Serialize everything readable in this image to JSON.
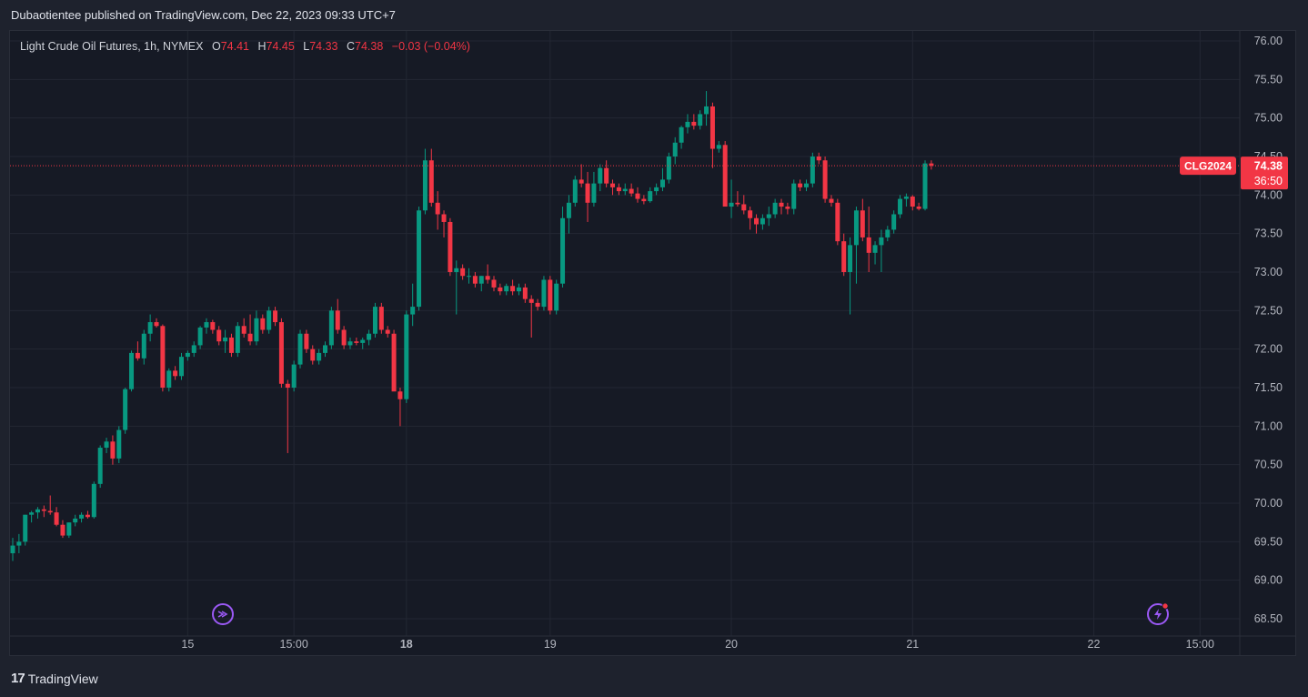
{
  "header": {
    "published_line": "Dubaotientee published on TradingView.com, Dec 22, 2023 09:33 UTC+7"
  },
  "legend": {
    "instrument": "Light Crude Oil Futures, 1h, NYMEX",
    "open_label": "O",
    "open": "74.41",
    "high_label": "H",
    "high": "74.45",
    "low_label": "L",
    "low": "74.33",
    "close_label": "C",
    "close": "74.38",
    "change": "−0.03 (−0.04%)"
  },
  "footer": {
    "brand": "TradingView",
    "brand_logo": "17"
  },
  "colors": {
    "up": "#089981",
    "down": "#f23645",
    "background": "#161a25",
    "grid": "#232733"
  },
  "icons": [
    "replay-arrow-icon",
    "flash-alert-icon"
  ],
  "chart_data": {
    "type": "candlestick",
    "interval": "1h",
    "symbol": "CLG2024",
    "last_price": "74.38",
    "countdown": "36:50",
    "ylim": [
      68.5,
      76.0
    ],
    "y_ticks": [
      "76.00",
      "75.50",
      "75.00",
      "74.50",
      "74.00",
      "73.50",
      "73.00",
      "72.50",
      "72.00",
      "71.50",
      "71.00",
      "70.50",
      "70.00",
      "69.50",
      "69.00",
      "68.50"
    ],
    "x_ticks": [
      {
        "label": "15",
        "index": 28,
        "bold": false
      },
      {
        "label": "15:00",
        "index": 45,
        "bold": false
      },
      {
        "label": "18",
        "index": 63,
        "bold": true
      },
      {
        "label": "19",
        "index": 86,
        "bold": false
      },
      {
        "label": "20",
        "index": 115,
        "bold": false
      },
      {
        "label": "21",
        "index": 144,
        "bold": false
      },
      {
        "label": "22",
        "index": 173,
        "bold": false
      },
      {
        "label": "15:00",
        "index": 190,
        "bold": false
      }
    ],
    "ohlc": [
      [
        69.35,
        69.55,
        69.25,
        69.45
      ],
      [
        69.45,
        69.6,
        69.35,
        69.5
      ],
      [
        69.5,
        69.85,
        69.45,
        69.85
      ],
      [
        69.85,
        69.9,
        69.75,
        69.88
      ],
      [
        69.88,
        69.95,
        69.8,
        69.92
      ],
      [
        69.92,
        69.97,
        69.82,
        69.9
      ],
      [
        69.9,
        70.1,
        69.85,
        69.88
      ],
      [
        69.88,
        69.95,
        69.7,
        69.72
      ],
      [
        69.72,
        69.78,
        69.55,
        69.58
      ],
      [
        69.58,
        69.75,
        69.55,
        69.75
      ],
      [
        69.75,
        69.85,
        69.7,
        69.8
      ],
      [
        69.8,
        69.88,
        69.75,
        69.85
      ],
      [
        69.85,
        69.9,
        69.8,
        69.82
      ],
      [
        69.82,
        70.28,
        69.8,
        70.25
      ],
      [
        70.25,
        70.75,
        70.2,
        70.72
      ],
      [
        70.72,
        70.85,
        70.65,
        70.8
      ],
      [
        70.8,
        70.88,
        70.5,
        70.58
      ],
      [
        70.58,
        71.0,
        70.52,
        70.95
      ],
      [
        70.95,
        71.5,
        70.9,
        71.48
      ],
      [
        71.48,
        71.98,
        71.45,
        71.95
      ],
      [
        71.95,
        72.1,
        71.85,
        71.88
      ],
      [
        71.88,
        72.25,
        71.8,
        72.2
      ],
      [
        72.2,
        72.45,
        72.1,
        72.35
      ],
      [
        72.35,
        72.4,
        72.28,
        72.3
      ],
      [
        72.3,
        72.32,
        71.45,
        71.5
      ],
      [
        71.5,
        71.75,
        71.45,
        71.72
      ],
      [
        71.72,
        71.78,
        71.6,
        71.65
      ],
      [
        71.65,
        71.95,
        71.6,
        71.9
      ],
      [
        71.9,
        71.98,
        71.85,
        71.95
      ],
      [
        71.95,
        72.1,
        71.9,
        72.05
      ],
      [
        72.05,
        72.3,
        72.0,
        72.28
      ],
      [
        72.28,
        72.4,
        72.2,
        72.35
      ],
      [
        72.35,
        72.38,
        72.2,
        72.25
      ],
      [
        72.25,
        72.3,
        72.05,
        72.1
      ],
      [
        72.1,
        72.25,
        71.95,
        72.15
      ],
      [
        72.15,
        72.2,
        71.9,
        71.95
      ],
      [
        71.95,
        72.35,
        71.9,
        72.3
      ],
      [
        72.3,
        72.4,
        72.15,
        72.2
      ],
      [
        72.2,
        72.45,
        72.05,
        72.1
      ],
      [
        72.1,
        72.5,
        72.05,
        72.4
      ],
      [
        72.4,
        72.45,
        72.2,
        72.25
      ],
      [
        72.25,
        72.55,
        72.2,
        72.5
      ],
      [
        72.5,
        72.55,
        72.3,
        72.35
      ],
      [
        72.35,
        72.4,
        71.5,
        71.55
      ],
      [
        71.55,
        71.6,
        70.65,
        71.5
      ],
      [
        71.5,
        71.85,
        71.45,
        71.8
      ],
      [
        71.8,
        72.25,
        71.75,
        72.2
      ],
      [
        72.2,
        72.25,
        71.95,
        72.0
      ],
      [
        72.0,
        72.05,
        71.8,
        71.85
      ],
      [
        71.85,
        72.0,
        71.8,
        71.95
      ],
      [
        71.95,
        72.1,
        71.9,
        72.05
      ],
      [
        72.05,
        72.55,
        72.0,
        72.5
      ],
      [
        72.5,
        72.65,
        72.2,
        72.25
      ],
      [
        72.25,
        72.3,
        72.0,
        72.05
      ],
      [
        72.05,
        72.15,
        72.0,
        72.1
      ],
      [
        72.1,
        72.15,
        72.05,
        72.08
      ],
      [
        72.08,
        72.15,
        72.0,
        72.12
      ],
      [
        72.12,
        72.25,
        72.05,
        72.2
      ],
      [
        72.2,
        72.6,
        72.15,
        72.55
      ],
      [
        72.55,
        72.6,
        72.2,
        72.25
      ],
      [
        72.25,
        72.3,
        72.15,
        72.2
      ],
      [
        72.2,
        72.25,
        71.5,
        71.45
      ],
      [
        71.45,
        71.5,
        71.0,
        71.35
      ],
      [
        71.35,
        72.5,
        71.3,
        72.45
      ],
      [
        72.45,
        72.85,
        72.3,
        72.55
      ],
      [
        72.55,
        73.85,
        72.5,
        73.8
      ],
      [
        73.8,
        74.6,
        73.75,
        74.45
      ],
      [
        74.45,
        74.6,
        73.85,
        73.9
      ],
      [
        73.9,
        74.05,
        73.55,
        73.75
      ],
      [
        73.75,
        73.8,
        73.45,
        73.65
      ],
      [
        73.65,
        73.7,
        72.95,
        73.0
      ],
      [
        73.0,
        73.15,
        72.45,
        73.05
      ],
      [
        73.05,
        73.1,
        72.9,
        72.95
      ],
      [
        72.95,
        73.05,
        72.85,
        72.95
      ],
      [
        72.95,
        73.0,
        72.8,
        72.85
      ],
      [
        72.85,
        72.95,
        72.75,
        72.95
      ],
      [
        72.95,
        73.1,
        72.85,
        72.9
      ],
      [
        72.9,
        72.95,
        72.75,
        72.8
      ],
      [
        72.8,
        72.85,
        72.7,
        72.75
      ],
      [
        72.75,
        72.85,
        72.7,
        72.82
      ],
      [
        72.82,
        72.9,
        72.7,
        72.75
      ],
      [
        72.75,
        72.85,
        72.7,
        72.8
      ],
      [
        72.8,
        72.85,
        72.6,
        72.65
      ],
      [
        72.65,
        72.7,
        72.15,
        72.6
      ],
      [
        72.6,
        72.65,
        72.5,
        72.55
      ],
      [
        72.55,
        72.95,
        72.5,
        72.9
      ],
      [
        72.9,
        72.95,
        72.45,
        72.5
      ],
      [
        72.5,
        72.9,
        72.45,
        72.85
      ],
      [
        72.85,
        73.85,
        72.8,
        73.7
      ],
      [
        73.7,
        74.0,
        73.5,
        73.9
      ],
      [
        73.9,
        74.25,
        73.85,
        74.2
      ],
      [
        74.2,
        74.4,
        74.1,
        74.15
      ],
      [
        74.15,
        74.3,
        73.65,
        73.9
      ],
      [
        73.9,
        74.3,
        73.85,
        74.15
      ],
      [
        74.15,
        74.4,
        74.05,
        74.35
      ],
      [
        74.35,
        74.45,
        74.1,
        74.15
      ],
      [
        74.15,
        74.2,
        74.0,
        74.1
      ],
      [
        74.1,
        74.15,
        74.0,
        74.05
      ],
      [
        74.05,
        74.15,
        74.0,
        74.08
      ],
      [
        74.08,
        74.15,
        73.98,
        74.02
      ],
      [
        74.02,
        74.1,
        73.9,
        73.95
      ],
      [
        73.95,
        74.0,
        73.88,
        73.92
      ],
      [
        73.92,
        74.1,
        73.9,
        74.05
      ],
      [
        74.05,
        74.15,
        74.0,
        74.1
      ],
      [
        74.1,
        74.35,
        74.05,
        74.2
      ],
      [
        74.2,
        74.55,
        74.15,
        74.5
      ],
      [
        74.5,
        74.75,
        74.4,
        74.68
      ],
      [
        74.68,
        74.9,
        74.6,
        74.88
      ],
      [
        74.88,
        75.05,
        74.8,
        74.95
      ],
      [
        74.95,
        75.05,
        74.85,
        74.9
      ],
      [
        74.9,
        75.1,
        74.85,
        75.05
      ],
      [
        75.05,
        75.35,
        74.9,
        75.15
      ],
      [
        75.15,
        75.2,
        74.35,
        74.6
      ],
      [
        74.6,
        74.7,
        74.55,
        74.65
      ],
      [
        74.65,
        74.7,
        73.9,
        73.85
      ],
      [
        73.85,
        74.2,
        73.7,
        73.9
      ],
      [
        73.9,
        74.05,
        73.85,
        73.88
      ],
      [
        73.88,
        74.0,
        73.75,
        73.8
      ],
      [
        73.8,
        73.85,
        73.55,
        73.7
      ],
      [
        73.7,
        73.75,
        73.5,
        73.62
      ],
      [
        73.62,
        73.75,
        73.55,
        73.7
      ],
      [
        73.7,
        73.85,
        73.6,
        73.75
      ],
      [
        73.75,
        73.95,
        73.7,
        73.9
      ],
      [
        73.9,
        73.95,
        73.75,
        73.85
      ],
      [
        73.85,
        73.9,
        73.75,
        73.82
      ],
      [
        73.82,
        74.2,
        73.75,
        74.15
      ],
      [
        74.15,
        74.2,
        74.05,
        74.1
      ],
      [
        74.1,
        74.2,
        74.05,
        74.15
      ],
      [
        74.15,
        74.55,
        74.1,
        74.5
      ],
      [
        74.5,
        74.55,
        74.4,
        74.45
      ],
      [
        74.45,
        74.5,
        73.9,
        73.95
      ],
      [
        73.95,
        74.0,
        73.85,
        73.9
      ],
      [
        73.9,
        73.95,
        73.35,
        73.4
      ],
      [
        73.4,
        73.5,
        72.95,
        73.0
      ],
      [
        73.0,
        73.45,
        72.45,
        73.35
      ],
      [
        73.35,
        73.85,
        72.85,
        73.8
      ],
      [
        73.8,
        73.95,
        73.4,
        73.45
      ],
      [
        73.45,
        73.85,
        73.0,
        73.25
      ],
      [
        73.25,
        73.4,
        73.1,
        73.35
      ],
      [
        73.35,
        73.55,
        73.0,
        73.45
      ],
      [
        73.45,
        73.6,
        73.4,
        73.55
      ],
      [
        73.55,
        73.8,
        73.5,
        73.75
      ],
      [
        73.75,
        74.0,
        73.7,
        73.95
      ],
      [
        73.95,
        74.02,
        73.85,
        73.98
      ],
      [
        73.98,
        74.0,
        73.8,
        73.85
      ],
      [
        73.85,
        73.9,
        73.8,
        73.82
      ],
      [
        73.82,
        74.45,
        73.8,
        74.41
      ],
      [
        74.41,
        74.45,
        74.33,
        74.38
      ]
    ]
  }
}
